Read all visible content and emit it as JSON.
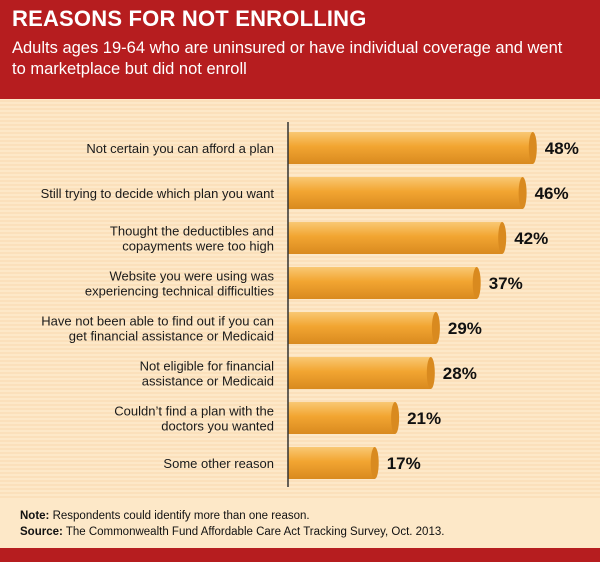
{
  "header": {
    "title": "REASONS FOR NOT ENROLLING",
    "subtitle": "Adults ages 19-64 who are uninsured or have individual coverage and went to marketplace but did not enroll"
  },
  "chart_data": {
    "type": "bar",
    "orientation": "horizontal",
    "title": "REASONS FOR NOT ENROLLING",
    "subtitle": "Adults ages 19-64 who are uninsured or have individual coverage and went to marketplace but did not enroll",
    "xlabel": "",
    "ylabel": "",
    "xlim": [
      0,
      50
    ],
    "categories": [
      [
        "Not certain you can afford a plan"
      ],
      [
        "Still trying to decide which plan you want"
      ],
      [
        "Thought the deductibles and",
        "copayments were too high"
      ],
      [
        "Website you were using was",
        "experiencing technical difficulties"
      ],
      [
        "Have not been able to find out if you can",
        "get financial assistance or Medicaid"
      ],
      [
        "Not eligible for financial",
        "assistance or Medicaid"
      ],
      [
        "Couldn’t find a plan with the",
        "doctors you wanted"
      ],
      [
        "Some other reason"
      ]
    ],
    "values": [
      48,
      46,
      42,
      37,
      29,
      28,
      21,
      17
    ],
    "value_labels": [
      "48%",
      "46%",
      "42%",
      "37%",
      "29%",
      "28%",
      "21%",
      "17%"
    ],
    "unit": "%",
    "grid": false,
    "legend": "none"
  },
  "notes": {
    "note_label": "Note:",
    "note_text": " Respondents could identify more than one reason.",
    "source_label": "Source:",
    "source_text": " The Commonwealth Fund Affordable Care Act Tracking Survey, Oct. 2013."
  },
  "colors": {
    "header_bg": "#b61d1f",
    "page_bg": "#fde8c8",
    "bar_fill": "#f2a531",
    "bar_highlight": "#f9c874",
    "bar_shadow": "#d98a1f",
    "axis": "#333333",
    "text": "#1a1a1a"
  }
}
